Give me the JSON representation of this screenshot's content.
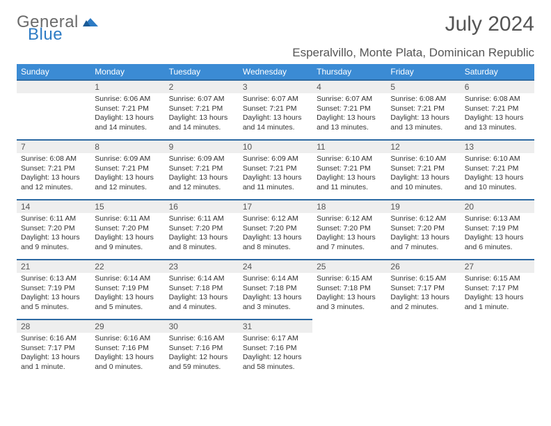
{
  "brand": {
    "part1": "General",
    "part2": "Blue"
  },
  "title": "July 2024",
  "subtitle": "Esperalvillo, Monte Plata, Dominican Republic",
  "colors": {
    "header_bg": "#3b8bd4",
    "rule": "#2d6aa3",
    "shade": "#eeeeee"
  },
  "day_headers": [
    "Sunday",
    "Monday",
    "Tuesday",
    "Wednesday",
    "Thursday",
    "Friday",
    "Saturday"
  ],
  "weeks": [
    [
      null,
      {
        "n": "1",
        "sr": "6:06 AM",
        "ss": "7:21 PM",
        "dl": "13 hours and 14 minutes."
      },
      {
        "n": "2",
        "sr": "6:07 AM",
        "ss": "7:21 PM",
        "dl": "13 hours and 14 minutes."
      },
      {
        "n": "3",
        "sr": "6:07 AM",
        "ss": "7:21 PM",
        "dl": "13 hours and 14 minutes."
      },
      {
        "n": "4",
        "sr": "6:07 AM",
        "ss": "7:21 PM",
        "dl": "13 hours and 13 minutes."
      },
      {
        "n": "5",
        "sr": "6:08 AM",
        "ss": "7:21 PM",
        "dl": "13 hours and 13 minutes."
      },
      {
        "n": "6",
        "sr": "6:08 AM",
        "ss": "7:21 PM",
        "dl": "13 hours and 13 minutes."
      }
    ],
    [
      {
        "n": "7",
        "sr": "6:08 AM",
        "ss": "7:21 PM",
        "dl": "13 hours and 12 minutes."
      },
      {
        "n": "8",
        "sr": "6:09 AM",
        "ss": "7:21 PM",
        "dl": "13 hours and 12 minutes."
      },
      {
        "n": "9",
        "sr": "6:09 AM",
        "ss": "7:21 PM",
        "dl": "13 hours and 12 minutes."
      },
      {
        "n": "10",
        "sr": "6:09 AM",
        "ss": "7:21 PM",
        "dl": "13 hours and 11 minutes."
      },
      {
        "n": "11",
        "sr": "6:10 AM",
        "ss": "7:21 PM",
        "dl": "13 hours and 11 minutes."
      },
      {
        "n": "12",
        "sr": "6:10 AM",
        "ss": "7:21 PM",
        "dl": "13 hours and 10 minutes."
      },
      {
        "n": "13",
        "sr": "6:10 AM",
        "ss": "7:21 PM",
        "dl": "13 hours and 10 minutes."
      }
    ],
    [
      {
        "n": "14",
        "sr": "6:11 AM",
        "ss": "7:20 PM",
        "dl": "13 hours and 9 minutes."
      },
      {
        "n": "15",
        "sr": "6:11 AM",
        "ss": "7:20 PM",
        "dl": "13 hours and 9 minutes."
      },
      {
        "n": "16",
        "sr": "6:11 AM",
        "ss": "7:20 PM",
        "dl": "13 hours and 8 minutes."
      },
      {
        "n": "17",
        "sr": "6:12 AM",
        "ss": "7:20 PM",
        "dl": "13 hours and 8 minutes."
      },
      {
        "n": "18",
        "sr": "6:12 AM",
        "ss": "7:20 PM",
        "dl": "13 hours and 7 minutes."
      },
      {
        "n": "19",
        "sr": "6:12 AM",
        "ss": "7:20 PM",
        "dl": "13 hours and 7 minutes."
      },
      {
        "n": "20",
        "sr": "6:13 AM",
        "ss": "7:19 PM",
        "dl": "13 hours and 6 minutes."
      }
    ],
    [
      {
        "n": "21",
        "sr": "6:13 AM",
        "ss": "7:19 PM",
        "dl": "13 hours and 5 minutes."
      },
      {
        "n": "22",
        "sr": "6:14 AM",
        "ss": "7:19 PM",
        "dl": "13 hours and 5 minutes."
      },
      {
        "n": "23",
        "sr": "6:14 AM",
        "ss": "7:18 PM",
        "dl": "13 hours and 4 minutes."
      },
      {
        "n": "24",
        "sr": "6:14 AM",
        "ss": "7:18 PM",
        "dl": "13 hours and 3 minutes."
      },
      {
        "n": "25",
        "sr": "6:15 AM",
        "ss": "7:18 PM",
        "dl": "13 hours and 3 minutes."
      },
      {
        "n": "26",
        "sr": "6:15 AM",
        "ss": "7:17 PM",
        "dl": "13 hours and 2 minutes."
      },
      {
        "n": "27",
        "sr": "6:15 AM",
        "ss": "7:17 PM",
        "dl": "13 hours and 1 minute."
      }
    ],
    [
      {
        "n": "28",
        "sr": "6:16 AM",
        "ss": "7:17 PM",
        "dl": "13 hours and 1 minute."
      },
      {
        "n": "29",
        "sr": "6:16 AM",
        "ss": "7:16 PM",
        "dl": "13 hours and 0 minutes."
      },
      {
        "n": "30",
        "sr": "6:16 AM",
        "ss": "7:16 PM",
        "dl": "12 hours and 59 minutes."
      },
      {
        "n": "31",
        "sr": "6:17 AM",
        "ss": "7:16 PM",
        "dl": "12 hours and 58 minutes."
      },
      null,
      null,
      null
    ]
  ],
  "labels": {
    "sunrise": "Sunrise:",
    "sunset": "Sunset:",
    "daylight": "Daylight:"
  }
}
